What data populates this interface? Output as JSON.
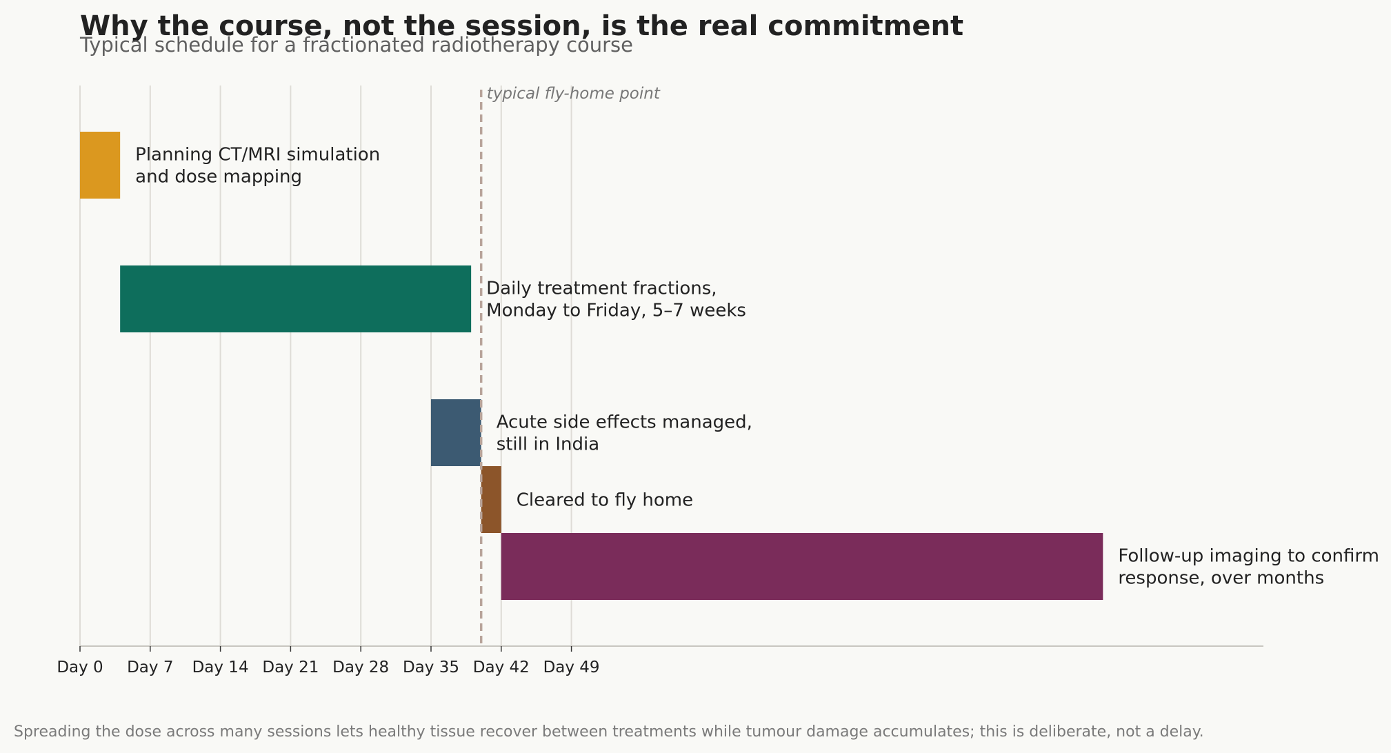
{
  "chart_data": {
    "type": "gantt",
    "title": "Why the course, not the session, is the real commitment",
    "subtitle": "Typical schedule for a fractionated radiotherapy course",
    "x_unit": "days",
    "xlim": [
      0,
      118
    ],
    "x_ticks": [
      0,
      7,
      14,
      21,
      28,
      35,
      42,
      49
    ],
    "x_tick_labels": [
      "Day 0",
      "Day 7",
      "Day 14",
      "Day 21",
      "Day 28",
      "Day 35",
      "Day 42",
      "Day 49"
    ],
    "grid": "vertical",
    "tasks": [
      {
        "label": [
          "Planning CT/MRI simulation",
          "and dose mapping"
        ],
        "start": 0,
        "end": 4,
        "color": "#DB981F"
      },
      {
        "label": [
          "Daily treatment fractions,",
          "Monday to Friday, 5–7 weeks"
        ],
        "start": 4,
        "end": 39,
        "color": "#0E6E5C"
      },
      {
        "label": [
          "Acute side effects managed,",
          "still in India"
        ],
        "start": 35,
        "end": 40,
        "color": "#3C5A72"
      },
      {
        "label": [
          "Cleared to fly home"
        ],
        "start": 40,
        "end": 42,
        "color": "#8C552A"
      },
      {
        "label": [
          "Follow-up imaging to confirm",
          "response, over months"
        ],
        "start": 42,
        "end": 102,
        "color": "#7A2C5A"
      }
    ],
    "marker": {
      "x": 40,
      "label": "typical fly-home point",
      "color": "#B8A49A",
      "style": "dashed"
    },
    "footnote": "Spreading the dose across many sessions lets healthy tissue recover between treatments while tumour damage accumulates; this is deliberate, not a delay."
  }
}
